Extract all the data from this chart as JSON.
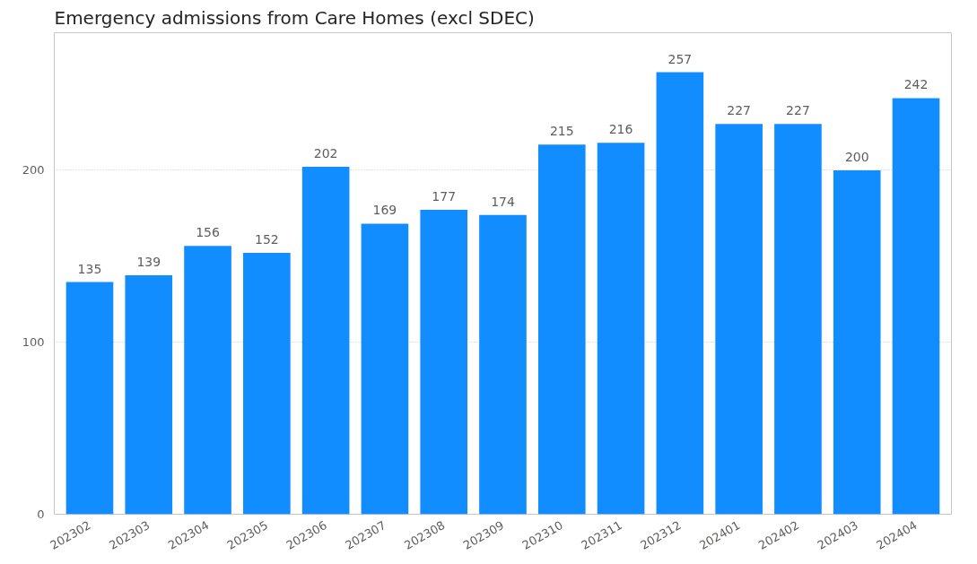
{
  "chart_data": {
    "type": "bar",
    "title": "Emergency admissions from Care Homes (excl SDEC)",
    "categories": [
      "202302",
      "202303",
      "202304",
      "202305",
      "202306",
      "202307",
      "202308",
      "202309",
      "202310",
      "202311",
      "202312",
      "202401",
      "202402",
      "202403",
      "202404"
    ],
    "values": [
      135,
      139,
      156,
      152,
      202,
      169,
      177,
      174,
      215,
      216,
      257,
      227,
      227,
      200,
      242
    ],
    "color": "#118dff",
    "ylim": [
      0,
      280
    ],
    "yticks": [
      0,
      100,
      200
    ],
    "grid": "y",
    "data_labels": true
  }
}
